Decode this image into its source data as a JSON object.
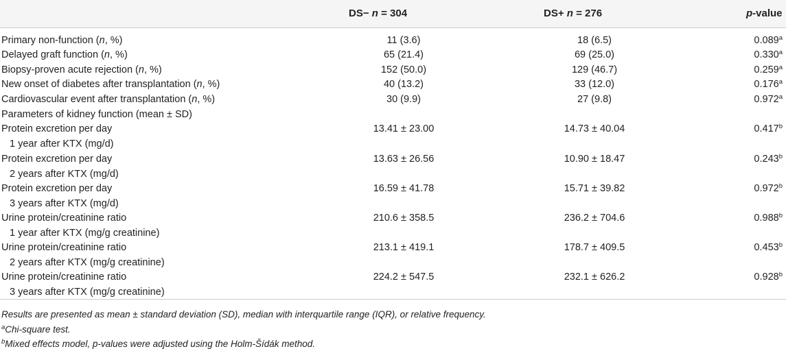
{
  "header": {
    "col1": {
      "pre": "DS− ",
      "var": "n",
      "post": " = 304"
    },
    "col2": {
      "pre": "DS+ ",
      "var": "n",
      "post": " = 276"
    },
    "col3": {
      "var": "p",
      "post": "-value"
    }
  },
  "rows": [
    {
      "pre": "Primary non-function (",
      "var": "n",
      "post": ", %)",
      "v1": "11 (3.6)",
      "v2": "18 (6.5)",
      "p": "0.089",
      "sup": "a"
    },
    {
      "pre": "Delayed graft function (",
      "var": "n",
      "post": ", %)",
      "v1": "65 (21.4)",
      "v2": "69 (25.0)",
      "p": "0.330",
      "sup": "a"
    },
    {
      "pre": "Biopsy-proven acute rejection (",
      "var": "n",
      "post": ", %)",
      "v1": "152 (50.0)",
      "v2": "129 (46.7)",
      "p": "0.259",
      "sup": "a"
    },
    {
      "pre": "New onset of diabetes after transplantation (",
      "var": "n",
      "post": ", %)",
      "v1": "40 (13.2)",
      "v2": "33 (12.0)",
      "p": "0.176",
      "sup": "a"
    },
    {
      "pre": "Cardiovascular event after transplantation (",
      "var": "n",
      "post": ", %)",
      "v1": "30 (9.9)",
      "v2": "27 (9.8)",
      "p": "0.972",
      "sup": "a"
    },
    {
      "section": "Parameters of kidney function (mean ± SD)"
    },
    {
      "label": "Protein excretion per day",
      "sub": "1 year after KTX (mg/d)",
      "v1": "13.41 ± 23.00",
      "v2": "14.73 ± 40.04",
      "p": "0.417",
      "sup": "b"
    },
    {
      "label": "Protein excretion per day",
      "sub": "2 years after KTX (mg/d)",
      "v1": "13.63 ± 26.56",
      "v2": "10.90 ± 18.47",
      "p": "0.243",
      "sup": "b"
    },
    {
      "label": "Protein excretion per day",
      "sub": "3 years after KTX (mg/d)",
      "v1": "16.59 ± 41.78",
      "v2": "15.71 ± 39.82",
      "p": "0.972",
      "sup": "b"
    },
    {
      "label": "Urine protein/creatinine ratio",
      "sub": "1 year after KTX (mg/g creatinine)",
      "v1": "210.6 ± 358.5",
      "v2": "236.2 ± 704.6",
      "p": "0.988",
      "sup": "b"
    },
    {
      "label": "Urine protein/creatinine ratio",
      "sub": "2 years after KTX (mg/g creatinine)",
      "v1": "213.1 ± 419.1",
      "v2": "178.7 ± 409.5",
      "p": "0.453",
      "sup": "b"
    },
    {
      "label": "Urine protein/creatinine ratio",
      "sub": "3 years after KTX (mg/g creatinine)",
      "v1": "224.2 ± 547.5",
      "v2": "232.1 ± 626.2",
      "p": "0.928",
      "sup": "b"
    }
  ],
  "footnotes": {
    "note": "Results are presented as mean ± standard deviation (SD), median with interquartile range (IQR), or relative frequency.",
    "a": {
      "mark": "a",
      "text": "Chi-square test."
    },
    "b": {
      "mark": "b",
      "text": "Mixed effects model, p-values were adjusted using the Holm-Šídák method."
    }
  },
  "colors": {
    "header_band": "#f5f5f5",
    "rule": "#cccccc",
    "text": "#222222"
  }
}
